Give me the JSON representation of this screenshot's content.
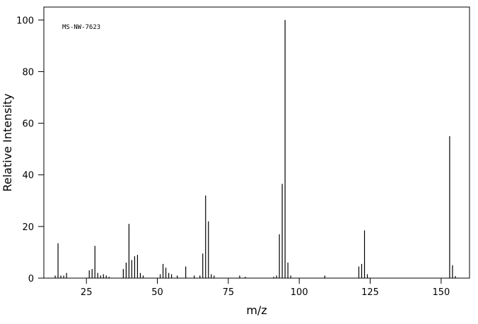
{
  "chart_data": {
    "type": "stick",
    "annotation": "MS-NW-7623",
    "xlabel": "m/z",
    "ylabel": "Relative Intensity",
    "x": [
      14,
      15,
      16,
      17,
      18,
      26,
      27,
      28,
      29,
      30,
      31,
      32,
      33,
      38,
      39,
      40,
      41,
      42,
      43,
      44,
      45,
      51,
      52,
      53,
      54,
      55,
      57,
      60,
      63,
      65,
      66,
      67,
      68,
      69,
      70,
      79,
      81,
      91,
      92,
      93,
      94,
      95,
      96,
      97,
      109,
      121,
      122,
      123,
      124,
      153,
      154,
      155
    ],
    "values": [
      1,
      13.5,
      1,
      1,
      2,
      3,
      3.5,
      12.5,
      2,
      1,
      1.5,
      1,
      0.5,
      3.5,
      6,
      21,
      7,
      8.5,
      9,
      2,
      1,
      1.5,
      5.5,
      4,
      2,
      1.5,
      1,
      4.5,
      1,
      1,
      9.5,
      32,
      22,
      1.5,
      1,
      1,
      0.5,
      0.5,
      1,
      17,
      36.5,
      100,
      6,
      1,
      1,
      4.5,
      5.5,
      18.5,
      1.5,
      55,
      5,
      0.8
    ],
    "color": "#000000",
    "xlim": [
      10,
      160
    ],
    "xticks": [
      25,
      50,
      75,
      100,
      125,
      150
    ],
    "ylim": [
      0,
      105
    ],
    "yticks": [
      0,
      20,
      40,
      60,
      80,
      100
    ]
  }
}
